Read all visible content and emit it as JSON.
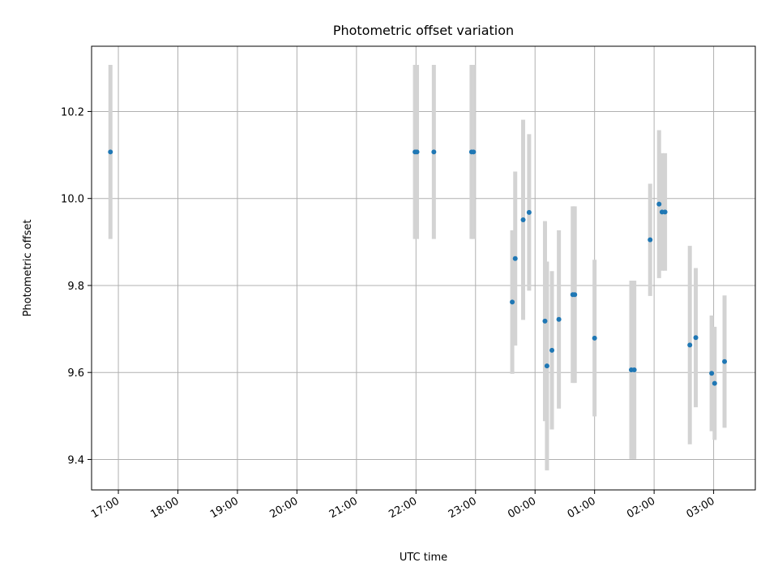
{
  "chart_data": {
    "type": "scatter",
    "title": "Photometric offset variation",
    "xlabel": "UTC time",
    "ylabel": "Photometric offset",
    "x_ticks": [
      "17:00",
      "18:00",
      "19:00",
      "20:00",
      "21:00",
      "22:00",
      "23:00",
      "00:00",
      "01:00",
      "02:00",
      "03:00"
    ],
    "xlim": [
      "16:33",
      "03:42"
    ],
    "y_ticks": [
      "9.4",
      "9.6",
      "9.8",
      "10.0",
      "10.2"
    ],
    "ylim": [
      9.33,
      10.35
    ],
    "grid": true,
    "colors": {
      "marker": "#1f77b4",
      "errorbar": "#d3d3d3",
      "grid": "#b0b0b0"
    },
    "points": [
      {
        "t": "16:52",
        "y": 10.107,
        "err": 0.2
      },
      {
        "t": "21:59",
        "y": 10.107,
        "err": 0.2
      },
      {
        "t": "22:01",
        "y": 10.107,
        "err": 0.2
      },
      {
        "t": "22:18",
        "y": 10.107,
        "err": 0.2
      },
      {
        "t": "22:56",
        "y": 10.107,
        "err": 0.2
      },
      {
        "t": "22:58",
        "y": 10.107,
        "err": 0.2
      },
      {
        "t": "23:37",
        "y": 9.762,
        "err": 0.165
      },
      {
        "t": "23:40",
        "y": 9.862,
        "err": 0.2
      },
      {
        "t": "23:48",
        "y": 9.951,
        "err": 0.23
      },
      {
        "t": "23:54",
        "y": 9.968,
        "err": 0.18
      },
      {
        "t": "00:10",
        "y": 9.718,
        "err": 0.23
      },
      {
        "t": "00:12",
        "y": 9.615,
        "err": 0.24
      },
      {
        "t": "00:17",
        "y": 9.651,
        "err": 0.182
      },
      {
        "t": "00:24",
        "y": 9.722,
        "err": 0.205
      },
      {
        "t": "00:38",
        "y": 9.779,
        "err": 0.203
      },
      {
        "t": "00:40",
        "y": 9.779,
        "err": 0.203
      },
      {
        "t": "01:00",
        "y": 9.679,
        "err": 0.18
      },
      {
        "t": "01:37",
        "y": 9.606,
        "err": 0.205
      },
      {
        "t": "01:40",
        "y": 9.606,
        "err": 0.205
      },
      {
        "t": "01:56",
        "y": 9.905,
        "err": 0.129
      },
      {
        "t": "02:05",
        "y": 9.987,
        "err": 0.17
      },
      {
        "t": "02:08",
        "y": 9.969,
        "err": 0.135
      },
      {
        "t": "02:11",
        "y": 9.969,
        "err": 0.135
      },
      {
        "t": "02:36",
        "y": 9.663,
        "err": 0.228
      },
      {
        "t": "02:42",
        "y": 9.68,
        "err": 0.16
      },
      {
        "t": "02:58",
        "y": 9.598,
        "err": 0.133
      },
      {
        "t": "03:01",
        "y": 9.575,
        "err": 0.13
      },
      {
        "t": "03:11",
        "y": 9.625,
        "err": 0.152
      }
    ]
  }
}
